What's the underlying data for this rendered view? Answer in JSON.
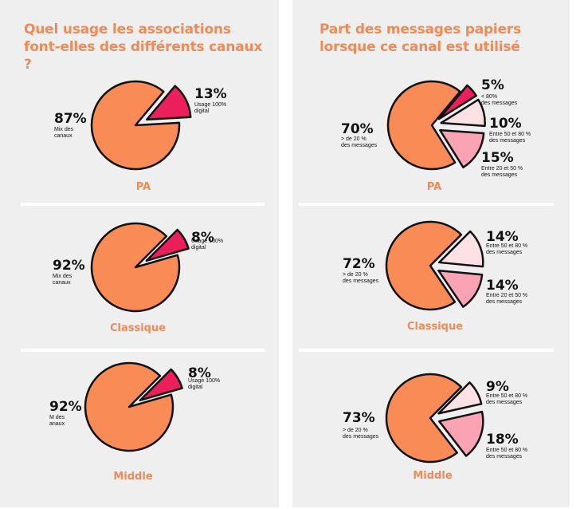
{
  "colors": {
    "main": "#f98b56",
    "hot": "#ea1f5c",
    "pink": "#f9a3b5",
    "pale": "#fde1e5",
    "outline": "#111111",
    "title": "#f08a56"
  },
  "left_title": "Quel usage les associations font-elles des différents canaux ?",
  "right_title": "Part des messages papiers lorsque ce canal est utilisé",
  "chart_data": [
    {
      "type": "pie",
      "panel": "left",
      "title": "PA",
      "slices": [
        {
          "pct": 87,
          "label": "87%",
          "desc": [
            "Mix des",
            "canaux"
          ],
          "color": "main"
        },
        {
          "pct": 13,
          "label": "13%",
          "desc": [
            "Usage 100%",
            "digital"
          ],
          "color": "hot"
        }
      ]
    },
    {
      "type": "pie",
      "panel": "left",
      "title": "Classique",
      "slices": [
        {
          "pct": 92,
          "label": "92%",
          "desc": [
            "Mix des",
            "canaux"
          ],
          "color": "main"
        },
        {
          "pct": 8,
          "label": "8%",
          "desc": [
            "Usage 100%",
            "digital"
          ],
          "color": "hot"
        }
      ]
    },
    {
      "type": "pie",
      "panel": "left",
      "title": "Middle",
      "slices": [
        {
          "pct": 92,
          "label": "92%",
          "desc": [
            "M des",
            "anaux"
          ],
          "color": "main"
        },
        {
          "pct": 8,
          "label": "8%",
          "desc": [
            "Usage 100%",
            "digital"
          ],
          "color": "hot"
        }
      ]
    },
    {
      "type": "pie",
      "panel": "right",
      "title": "PA",
      "slices": [
        {
          "pct": 70,
          "label": "70%",
          "desc": [
            "> de 20 %",
            "des messages"
          ],
          "color": "main"
        },
        {
          "pct": 5,
          "label": "5%",
          "desc": [
            "< 80%",
            "des messages"
          ],
          "color": "hot"
        },
        {
          "pct": 10,
          "label": "10%",
          "desc": [
            "Entre 50 et 80 %",
            "des messages"
          ],
          "color": "pale"
        },
        {
          "pct": 15,
          "label": "15%",
          "desc": [
            "Entre 20 et 50 %",
            "des messages"
          ],
          "color": "pink"
        }
      ]
    },
    {
      "type": "pie",
      "panel": "right",
      "title": "Classique",
      "slices": [
        {
          "pct": 72,
          "label": "72%",
          "desc": [
            "> de 20 %",
            "des messages"
          ],
          "color": "main"
        },
        {
          "pct": 14,
          "label": "14%",
          "desc": [
            "Entre 50 et 80 %",
            "des messages"
          ],
          "color": "pale"
        },
        {
          "pct": 14,
          "label": "14%",
          "desc": [
            "Entre 20 et 50 %",
            "des messages"
          ],
          "color": "pink"
        }
      ]
    },
    {
      "type": "pie",
      "panel": "right",
      "title": "Middle",
      "slices": [
        {
          "pct": 73,
          "label": "73%",
          "desc": [
            "> de 20 %",
            "des messages"
          ],
          "color": "main"
        },
        {
          "pct": 9,
          "label": "9%",
          "desc": [
            "Entre 50 et 80 %",
            "des messages"
          ],
          "color": "pale"
        },
        {
          "pct": 18,
          "label": "18%",
          "desc": [
            "Entre 50 et 80 %",
            "des messages"
          ],
          "color": "pink"
        }
      ]
    }
  ]
}
